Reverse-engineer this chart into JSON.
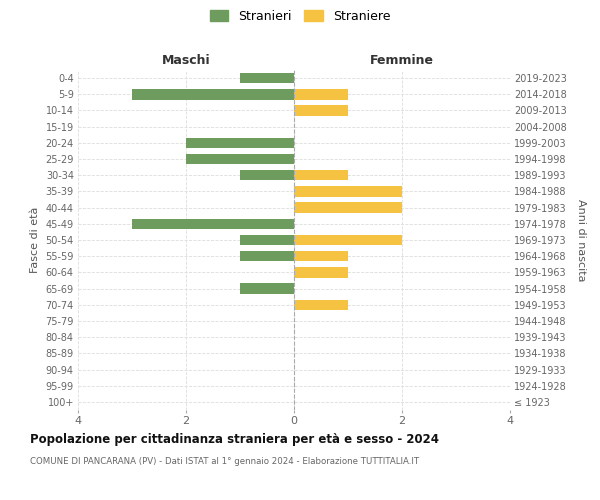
{
  "age_groups": [
    "100+",
    "95-99",
    "90-94",
    "85-89",
    "80-84",
    "75-79",
    "70-74",
    "65-69",
    "60-64",
    "55-59",
    "50-54",
    "45-49",
    "40-44",
    "35-39",
    "30-34",
    "25-29",
    "20-24",
    "15-19",
    "10-14",
    "5-9",
    "0-4"
  ],
  "birth_years": [
    "≤ 1923",
    "1924-1928",
    "1929-1933",
    "1934-1938",
    "1939-1943",
    "1944-1948",
    "1949-1953",
    "1954-1958",
    "1959-1963",
    "1964-1968",
    "1969-1973",
    "1974-1978",
    "1979-1983",
    "1984-1988",
    "1989-1993",
    "1994-1998",
    "1999-2003",
    "2004-2008",
    "2009-2013",
    "2014-2018",
    "2019-2023"
  ],
  "males": [
    0,
    0,
    0,
    0,
    0,
    0,
    0,
    1,
    0,
    1,
    1,
    3,
    0,
    0,
    1,
    2,
    2,
    0,
    0,
    3,
    1
  ],
  "females": [
    0,
    0,
    0,
    0,
    0,
    0,
    1,
    0,
    1,
    1,
    2,
    0,
    2,
    2,
    1,
    0,
    0,
    0,
    1,
    1,
    0
  ],
  "male_color": "#6e9b5e",
  "female_color": "#f5c242",
  "male_label": "Stranieri",
  "female_label": "Straniere",
  "title": "Popolazione per cittadinanza straniera per età e sesso - 2024",
  "subtitle": "COMUNE DI PANCARANA (PV) - Dati ISTAT al 1° gennaio 2024 - Elaborazione TUTTITALIA.IT",
  "xlabel_left": "Maschi",
  "xlabel_right": "Femmine",
  "ylabel_left": "Fasce di età",
  "ylabel_right": "Anni di nascita",
  "xlim": 4,
  "background_color": "#ffffff",
  "grid_color": "#dddddd"
}
